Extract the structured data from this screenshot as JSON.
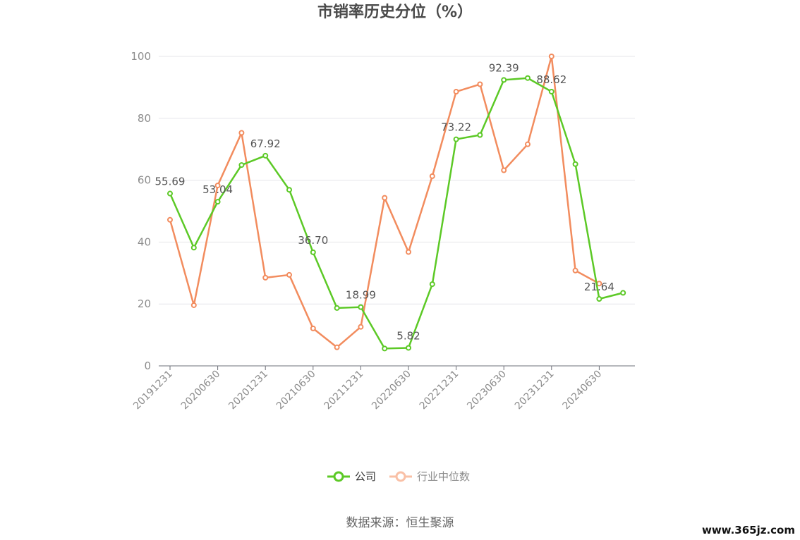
{
  "chart_data": {
    "type": "line",
    "title": "市销率历史分位（%）",
    "ylim": [
      0,
      100
    ],
    "yticks": [
      0,
      20,
      40,
      60,
      80,
      100
    ],
    "xtick_labels": [
      "20191231",
      "20200630",
      "20201231",
      "20210630",
      "20211231",
      "20220630",
      "20221231",
      "20230630",
      "20231231",
      "20240630"
    ],
    "x": [
      "20191231",
      "20200331",
      "20200630",
      "20200930",
      "20201231",
      "20210331",
      "20210630",
      "20210930",
      "20211231",
      "20220331",
      "20220630",
      "20220930",
      "20221231",
      "20230331",
      "20230630",
      "20230930",
      "20231231",
      "20240331",
      "20240630",
      "20240930"
    ],
    "grid": true,
    "legend_position": "bottom-center",
    "series": [
      {
        "name": "公司",
        "color": "#5cc926",
        "values": [
          55.69,
          38.2,
          53.04,
          64.9,
          67.92,
          56.9,
          36.7,
          18.7,
          18.99,
          5.6,
          5.82,
          26.4,
          73.22,
          74.6,
          92.39,
          93.0,
          88.62,
          65.2,
          21.64,
          23.6
        ],
        "labeled_indices": [
          0,
          2,
          4,
          6,
          8,
          10,
          12,
          14,
          16,
          18
        ],
        "labels": [
          "55.69",
          "53.04",
          "67.92",
          "36.70",
          "18.99",
          "5.82",
          "73.22",
          "92.39",
          "88.62",
          "21.64"
        ]
      },
      {
        "name": "行业中位数",
        "color": "#f28c5e",
        "values": [
          47.2,
          19.6,
          58.3,
          75.3,
          28.5,
          29.4,
          12.1,
          6.0,
          12.6,
          54.3,
          36.8,
          61.3,
          88.6,
          91.0,
          63.2,
          71.6,
          100.0,
          30.8,
          26.6,
          null
        ]
      }
    ]
  },
  "source_text": "数据来源：恒生聚源",
  "watermark": "www.365jz.com"
}
